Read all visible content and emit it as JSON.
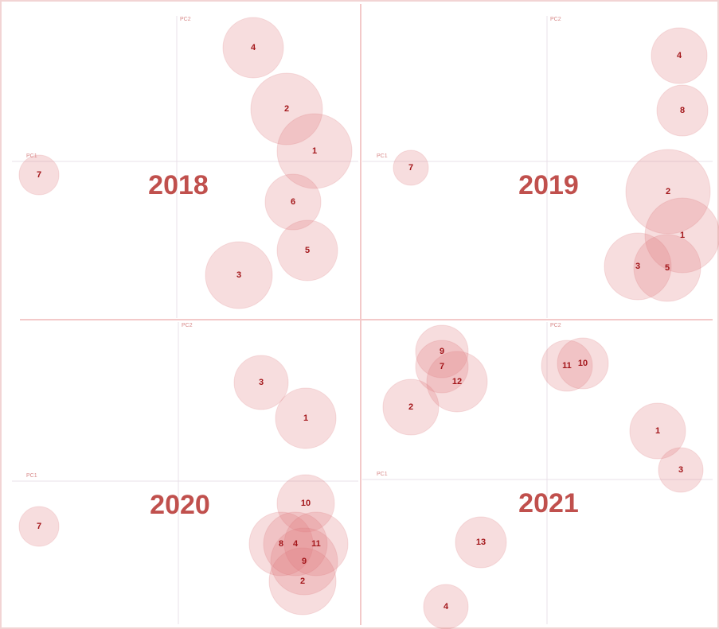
{
  "chart_data": [
    {
      "type": "bubble",
      "title": "2018",
      "x_label": "PC1",
      "y_label": "PC2",
      "xlim": [
        -207,
        228
      ],
      "ylim": [
        -197,
        183
      ],
      "labels": [
        "4",
        "2",
        "1",
        "6",
        "5",
        "3",
        "7"
      ],
      "x": [
        96,
        138,
        173,
        146,
        164,
        78,
        -173
      ],
      "y": [
        143,
        66,
        13,
        -51,
        -112,
        -143,
        -17
      ],
      "sizes": [
        38,
        45,
        47,
        35,
        38,
        42,
        25
      ]
    },
    {
      "type": "bubble",
      "title": "2019",
      "x_label": "PC1",
      "y_label": "PC2",
      "xlim": [
        -232,
        208
      ],
      "ylim": [
        -197,
        183
      ],
      "labels": [
        "4",
        "8",
        "7",
        "2",
        "1",
        "3",
        "5"
      ],
      "x": [
        166,
        170,
        -171,
        152,
        170,
        114,
        151
      ],
      "y": [
        133,
        64,
        -8,
        -38,
        -93,
        -132,
        -134
      ],
      "sizes": [
        35,
        32,
        22,
        53,
        47,
        42,
        42
      ]
    },
    {
      "type": "bubble",
      "title": "2020",
      "x_label": "PC1",
      "y_label": "PC2",
      "xlim": [
        -209,
        226
      ],
      "ylim": [
        -180,
        200
      ],
      "labels": [
        "3",
        "1",
        "10",
        "8",
        "4",
        "11",
        "9",
        "2",
        "7"
      ],
      "x": [
        104,
        160,
        160,
        129,
        147,
        173,
        158,
        156,
        -175
      ],
      "y": [
        124,
        79,
        -28,
        -79,
        -79,
        -79,
        -101,
        -126,
        -57
      ],
      "sizes": [
        34,
        38,
        36,
        40,
        40,
        40,
        42,
        42,
        25
      ]
    },
    {
      "type": "bubble",
      "title": "2021",
      "x_label": "PC1",
      "y_label": "PC2",
      "xlim": [
        -232,
        208
      ],
      "ylim": [
        -182,
        198
      ],
      "labels": [
        "9",
        "7",
        "12",
        "2",
        "11",
        "10",
        "1",
        "3",
        "13",
        "4"
      ],
      "x": [
        -132,
        -132,
        -113,
        -171,
        25,
        45,
        139,
        168,
        -83,
        -127
      ],
      "y": [
        161,
        142,
        123,
        91,
        143,
        146,
        61,
        12,
        -79,
        -160
      ],
      "sizes": [
        33,
        33,
        38,
        35,
        32,
        32,
        35,
        28,
        32,
        28
      ]
    }
  ]
}
